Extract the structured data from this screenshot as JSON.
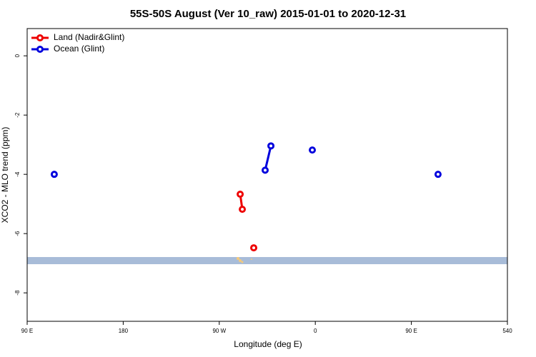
{
  "chart_data": {
    "type": "line",
    "title": "55S-50S August (Ver 10_raw)   2015-01-01 to 2020-12-31",
    "x_label": "Longitude (deg E)",
    "y_label": "XCO2 - MLO trend (ppm)",
    "xlim": [
      90,
      540
    ],
    "xticks": [
      {
        "value": 90,
        "label": "90 E"
      },
      180,
      {
        "value": 270,
        "label": "90 W"
      },
      {
        "value": 360,
        "label": "0"
      },
      {
        "value": 450,
        "label": "90 E"
      },
      540
    ],
    "ylim": [
      -8.96,
      0.92
    ],
    "yticks": [
      0,
      -2,
      -4,
      -6,
      -8
    ],
    "legend": "top-left",
    "series": [
      {
        "name": "Land (Nadir&Glint)",
        "color": "#ee0000",
        "x": [
          289.6,
          291.6,
          null,
          302.3
        ],
        "values": [
          -4.67,
          -5.18,
          null,
          -6.48
        ]
      },
      {
        "name": "Ocean (Glint)",
        "color": "#0000dd",
        "x": [
          115.4,
          null,
          313.0,
          318.4,
          null,
          357.2,
          null,
          475.0
        ],
        "values": [
          -4.0,
          null,
          -3.86,
          -3.04,
          null,
          -3.18,
          null,
          -4.0
        ]
      }
    ]
  }
}
